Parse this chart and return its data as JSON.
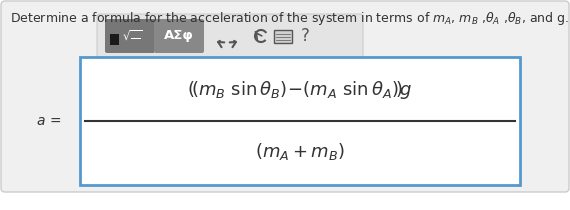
{
  "bg_color": "#ffffff",
  "outer_bg": "#f0f0f0",
  "white": "#ffffff",
  "border_color": "#cccccc",
  "blue_border": "#5599cc",
  "text_color": "#333333",
  "dark_gray": "#777777",
  "toolbar_bg": "#e8e8e8",
  "btn1_color": "#888888",
  "btn2_color": "#888888",
  "icon_color": "#555555",
  "top_text_plain": "Determine a formula for the acceleration of the system in terms of ",
  "top_text_math": "$m_A$, $m_B$ ,$\\theta_A$ ,$\\theta_B$, and g.",
  "label_a": "$a\\,=$",
  "toolbar_label": "AΣφ"
}
